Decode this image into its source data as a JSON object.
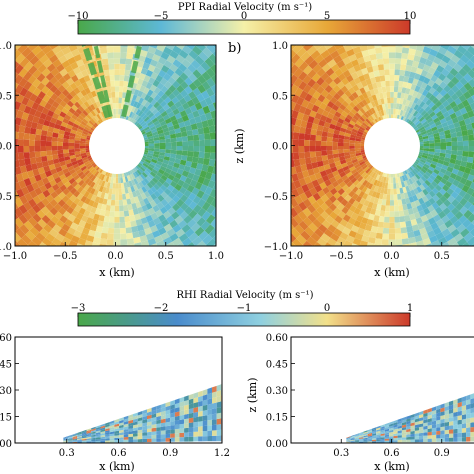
{
  "chart_data": [
    {
      "type": "heatmap",
      "colorbar": {
        "label": "PPI Radial Velocity (m s⁻¹)",
        "range": [
          -10,
          10
        ],
        "ticks": [
          "−10",
          "−5",
          "0",
          "5",
          "10"
        ]
      },
      "panels": [
        {
          "panel_label": "",
          "xlabel": "x (km)",
          "ylabel": "",
          "xlim": [
            -1.0,
            1.0
          ],
          "ylim": [
            -1.0,
            1.0
          ],
          "xticks": [
            "−1.0",
            "−0.5",
            "0.0",
            "0.5",
            "1.0"
          ],
          "yticks": [
            "1.0",
            "0.5",
            "0.0",
            "−0.5",
            "−1.0"
          ]
        },
        {
          "panel_label": "b)",
          "xlabel": "x (km)",
          "ylabel": "z (km)",
          "xlim": [
            -1.0,
            1.0
          ],
          "ylim": [
            -1.0,
            1.0
          ],
          "xticks": [
            "−1.0",
            "−0.5",
            "0.0",
            "0.5"
          ],
          "yticks": [
            "1.0",
            "0.5",
            "0.0",
            "−0.5",
            "−1.0"
          ]
        }
      ]
    },
    {
      "type": "heatmap",
      "colorbar": {
        "label": "RHI Radial Velocity (m s⁻¹)",
        "range": [
          -3,
          1
        ],
        "ticks": [
          "−3",
          "−2",
          "−1",
          "0",
          "1"
        ]
      },
      "panels": [
        {
          "panel_label": "",
          "xlabel": "x (km)",
          "ylabel": "",
          "xlim": [
            0.0,
            1.2
          ],
          "ylim": [
            0.0,
            0.6
          ],
          "xticks": [
            "0.3",
            "0.6",
            "0.9",
            "1.2"
          ],
          "yticks": [
            ".60",
            ".45",
            ".30",
            ".15",
            ".00"
          ]
        },
        {
          "panel_label": "",
          "xlabel": "x (km)",
          "ylabel": "z (km)",
          "xlim": [
            0.0,
            1.2
          ],
          "ylim": [
            0.0,
            0.6
          ],
          "xticks": [
            "0.3",
            "0.6",
            "0.9"
          ],
          "yticks": [
            "0.60",
            "0.45",
            "0.30",
            "0.15",
            "0.00"
          ]
        }
      ]
    }
  ]
}
